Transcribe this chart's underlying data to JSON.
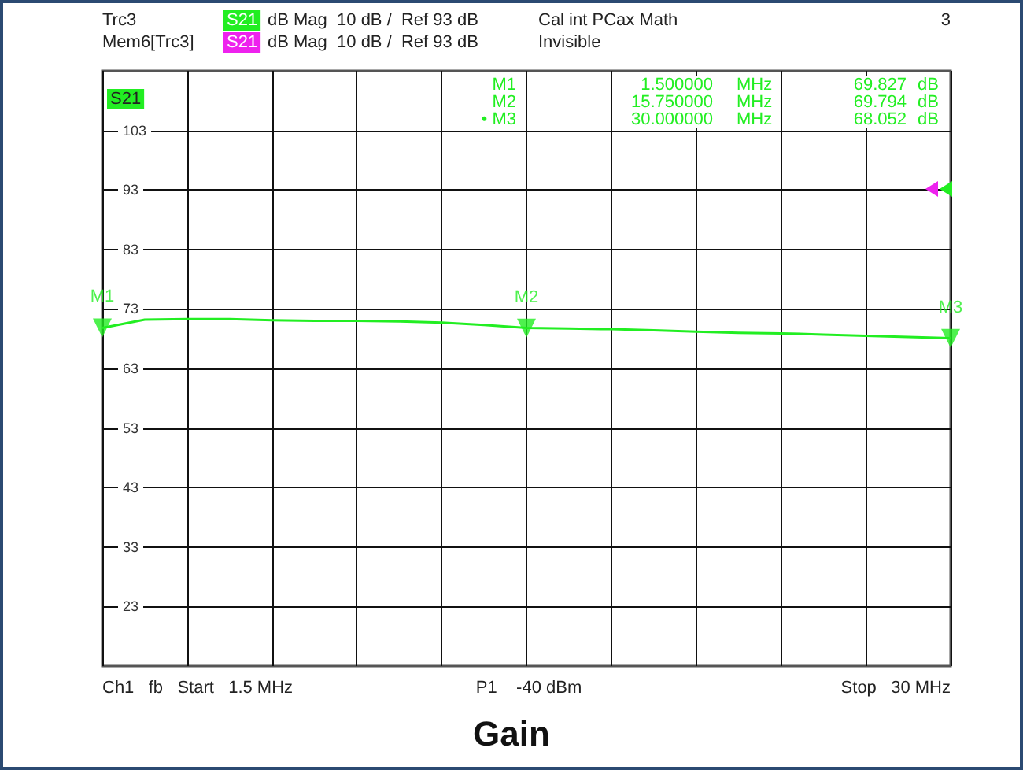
{
  "chart_data": {
    "type": "line",
    "title": "Gain",
    "annotations": [
      "Trc3",
      "S21",
      "dB Mag  10 dB /  Ref 93 dB",
      "Cal int PCax Math",
      "3",
      "Mem6[Trc3]",
      "S21",
      "dB Mag  10 dB /  Ref 93 dB",
      "Invisible",
      "M1  1.500000  MHz  69.827  dB",
      "M2  15.750000  MHz  69.794  dB",
      "• M3  30.000000  MHz  68.052  dB",
      "Ch1   fb   Start   1.5 MHz",
      "P1    -40 dBm",
      "Stop   30 MHz",
      {
        "text": "M1",
        "y": 69.827
      },
      {
        "text": "M2",
        "y": 69.794
      },
      {
        "text": "M3",
        "y": 68.052
      }
    ],
    "categories": [
      null,
      null,
      null,
      null,
      null,
      null,
      null,
      null,
      null,
      null,
      null,
      null,
      null,
      null,
      null,
      null,
      null,
      null,
      null,
      null,
      null
    ],
    "series": [
      {
        "name": "S21",
        "color": "#22ee22",
        "values": [
          69.8,
          71.2,
          71.3,
          71.3,
          71.1,
          71.0,
          71.0,
          70.9,
          70.7,
          70.3,
          69.8,
          69.7,
          69.6,
          69.4,
          69.2,
          69.0,
          68.9,
          68.7,
          68.5,
          68.3,
          68.1
        ]
      }
    ],
    "ylim": [
      13,
      113
    ],
    "yticks": [
      23,
      33,
      43,
      53,
      63,
      73,
      83,
      93,
      103
    ],
    "grid": true,
    "legend": false,
    "marker": "none",
    "line_style": "solid"
  }
}
